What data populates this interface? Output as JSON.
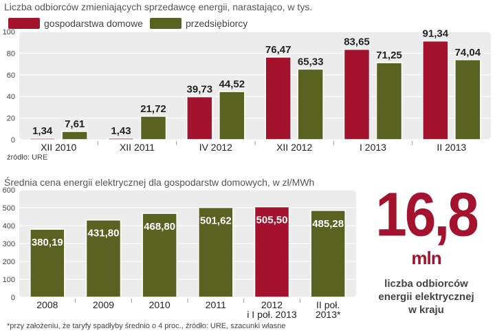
{
  "chart_data": [
    {
      "type": "bar",
      "title": "Liczba odbiorców zmieniających sprzedawcę energii, narastająco, w tys.",
      "categories": [
        "XII 2010",
        "XII 2011",
        "IV 2012",
        "XII 2012",
        "I 2013",
        "II 2013"
      ],
      "series": [
        {
          "name": "gospodarstwa domowe",
          "color": "#a3132e",
          "values": [
            1.34,
            1.43,
            39.73,
            76.47,
            83.65,
            91.34
          ],
          "labels": [
            "1,34",
            "1,43",
            "39,73",
            "76,47",
            "83,65",
            "91,34"
          ]
        },
        {
          "name": "przedsiębiorcy",
          "color": "#5a6222",
          "values": [
            7.61,
            21.72,
            44.52,
            65.33,
            71.25,
            74.04
          ],
          "labels": [
            "7,61",
            "21,72",
            "44,52",
            "65,33",
            "71,25",
            "74,04"
          ]
        }
      ],
      "yticks": [
        0,
        20,
        40,
        60,
        80,
        100
      ],
      "ylim": [
        0,
        100
      ],
      "source": "źródło: URE"
    },
    {
      "type": "bar",
      "title": "Średnia cena energii elektrycznej dla gospodarstw domowych, w zł/MWh",
      "categories": [
        "2008",
        "2009",
        "2010",
        "2011",
        "2012 i I poł. 2013",
        "II poł. 2013*"
      ],
      "category_lines": [
        [
          "2008"
        ],
        [
          "2009"
        ],
        [
          "2010"
        ],
        [
          "2011"
        ],
        [
          "2012",
          "i I poł. 2013"
        ],
        [
          "II poł.",
          "2013*"
        ]
      ],
      "values": [
        380.19,
        431.8,
        468.8,
        501.62,
        505.5,
        485.28
      ],
      "labels": [
        "380,19",
        "431,80",
        "468,80",
        "501,62",
        "505,50",
        "485,28"
      ],
      "colors": [
        "#5a6222",
        "#5a6222",
        "#5a6222",
        "#5a6222",
        "#a3132e",
        "#5a6222"
      ],
      "yticks": [
        0,
        100,
        200,
        300,
        400,
        500,
        600
      ],
      "ylim": [
        0,
        600
      ],
      "footnote": "*przy założeniu, że taryfy spadłyby średnio o 4 proc., źródło: URE, szacunki własne"
    }
  ],
  "highlight": {
    "number": "16,8",
    "unit": "mln",
    "description": [
      "liczba odbiorców",
      "energii elektrycznej",
      "w kraju"
    ]
  },
  "colors": {
    "household": "#a3132e",
    "business": "#5a6222",
    "panel": "#ececec",
    "accent": "#a3132e"
  }
}
